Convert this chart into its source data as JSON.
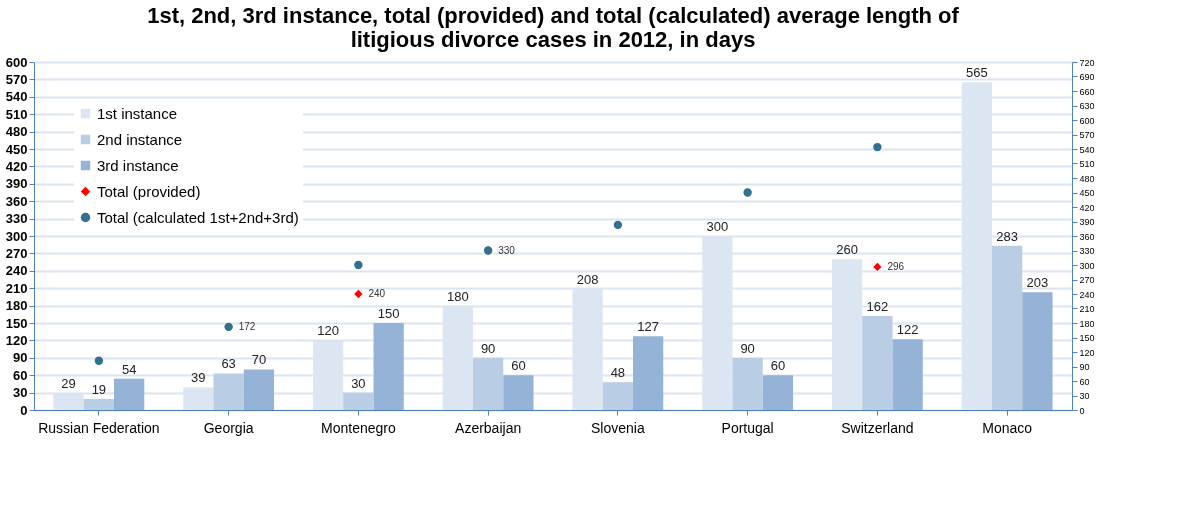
{
  "chart_data": {
    "type": "bar",
    "title": [
      "1st, 2nd, 3rd instance, total (provided) and total (calculated) average length of",
      "litigious divorce cases in 2012, in days"
    ],
    "categories": [
      "Russian Federation",
      "Georgia",
      "Montenegro",
      "Azerbaijan",
      "Slovenia",
      "Portugal",
      "Switzerland",
      "Monaco"
    ],
    "series": [
      {
        "name": "1st instance",
        "color": "#dce6f2",
        "values": [
          29,
          39,
          120,
          180,
          208,
          300,
          260,
          565
        ]
      },
      {
        "name": "2nd instance",
        "color": "#b9cde5",
        "values": [
          19,
          63,
          30,
          90,
          48,
          90,
          162,
          283
        ]
      },
      {
        "name": "3rd instance",
        "color": "#95b3d7",
        "values": [
          54,
          70,
          150,
          60,
          127,
          60,
          122,
          203
        ]
      },
      {
        "name": "Total (provided)",
        "type": "scatter",
        "marker": "diamond",
        "axis": "y2",
        "color": "#ff0000",
        "values": [
          null,
          172,
          240,
          330,
          null,
          null,
          296,
          null
        ],
        "value_labels": [
          null,
          "172",
          "240",
          "330",
          null,
          null,
          "296",
          null
        ]
      },
      {
        "name": "Total (calculated 1st+2nd+3rd)",
        "type": "scatter",
        "marker": "circle",
        "axis": "y2",
        "color": "#31708f",
        "values": [
          102,
          172,
          300,
          330,
          383,
          450,
          544,
          null
        ],
        "value_labels": [
          null,
          null,
          null,
          null,
          null,
          null,
          null,
          null
        ]
      }
    ],
    "data_labels": true,
    "ylim": [
      0,
      600
    ],
    "yticks": [
      0,
      30,
      60,
      90,
      120,
      150,
      180,
      210,
      240,
      270,
      300,
      330,
      360,
      390,
      420,
      450,
      480,
      510,
      540,
      570,
      600
    ],
    "y2lim": [
      0,
      720
    ],
    "y2ticks": [
      0,
      30,
      60,
      90,
      120,
      150,
      180,
      210,
      240,
      270,
      300,
      330,
      360,
      390,
      420,
      450,
      480,
      510,
      540,
      570,
      600,
      630,
      660,
      690,
      720
    ],
    "grid": "y",
    "legend": "top left"
  }
}
